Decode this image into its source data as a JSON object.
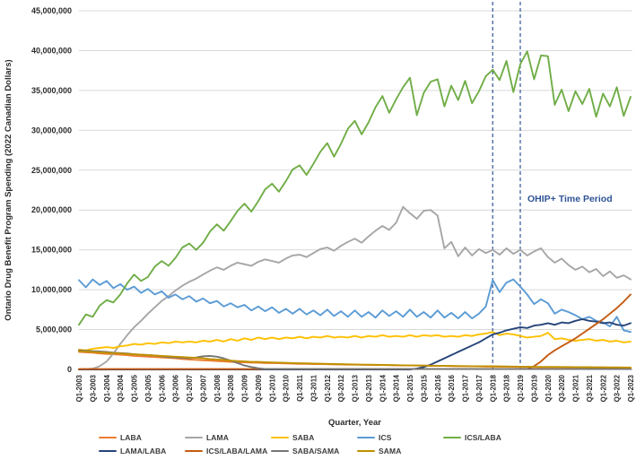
{
  "y_axis": {
    "title": "Ontario Drug Benefit Program Spending (2022 Canadian Dollars)",
    "tick_labels": [
      "0",
      "5,000,000",
      "10,000,000",
      "15,000,000",
      "20,000,000",
      "25,000,000",
      "30,000,000",
      "35,000,000",
      "40,000,000",
      "45,000,000"
    ],
    "min": 0,
    "max": 45000000,
    "step": 5000000
  },
  "x_axis": {
    "title": "Quarter, Year",
    "tick_labels": [
      "Q1-2003",
      "Q3-2003",
      "Q1-2004",
      "Q3-2004",
      "Q1-2005",
      "Q3-2005",
      "Q1-2006",
      "Q3-2006",
      "Q1-2007",
      "Q3-2007",
      "Q1-2008",
      "Q3-2008",
      "Q1-2009",
      "Q3-2009",
      "Q1-2010",
      "Q3-2010",
      "Q1-2011",
      "Q3-2011",
      "Q1-2012",
      "Q3-2012",
      "Q1-2013",
      "Q3-2013",
      "Q1-2014",
      "Q3-2014",
      "Q1-2015",
      "Q3-2015",
      "Q1-2016",
      "Q3-2016",
      "Q1-2017",
      "Q3-2017",
      "Q1-2018",
      "Q3-2018",
      "Q1-2019",
      "Q3-2019",
      "Q1-2020",
      "Q3-2020",
      "Q1-2021",
      "Q3-2021",
      "Q1-2022",
      "Q3-2022",
      "Q1-2023"
    ]
  },
  "annotation": {
    "label": "OHIP+ Time Period",
    "color": "#2F5496",
    "vline_quarter_indices": [
      60,
      64
    ],
    "period_start": "Q1-2018",
    "period_end": "Q2-2019"
  },
  "chart_data": {
    "type": "line",
    "x_start": "Q1-2003",
    "x_end": "Q1-2023",
    "points_per_series": 81,
    "x_unit": "quarter",
    "value_unit": "millions of 2022 Canadian dollars",
    "ylim_millions": [
      0,
      45
    ],
    "grid": "horizontal",
    "legend_position": "bottom",
    "series": [
      {
        "name": "LABA",
        "color": "#ED7D31",
        "values": [
          2.2,
          2.15,
          2.1,
          2.0,
          1.95,
          1.9,
          1.85,
          1.8,
          1.7,
          1.65,
          1.6,
          1.55,
          1.5,
          1.45,
          1.4,
          1.3,
          1.25,
          1.2,
          1.15,
          1.1,
          1.05,
          1.0,
          0.95,
          0.9,
          0.9,
          0.85,
          0.85,
          0.8,
          0.8,
          0.78,
          0.75,
          0.72,
          0.7,
          0.7,
          0.68,
          0.66,
          0.65,
          0.63,
          0.62,
          0.6,
          0.6,
          0.58,
          0.57,
          0.55,
          0.55,
          0.53,
          0.52,
          0.5,
          0.5,
          0.48,
          0.47,
          0.45,
          0.45,
          0.44,
          0.42,
          0.4,
          0.4,
          0.38,
          0.37,
          0.35,
          0.35,
          0.34,
          0.33,
          0.32,
          0.3,
          0.3,
          0.29,
          0.28,
          0.28,
          0.27,
          0.26,
          0.25,
          0.25,
          0.24,
          0.24,
          0.23,
          0.22,
          0.22,
          0.21,
          0.2,
          0.2
        ]
      },
      {
        "name": "LAMA",
        "color": "#A6A6A6",
        "values": [
          0.0,
          0.05,
          0.1,
          0.4,
          1.0,
          2.0,
          3.2,
          4.3,
          5.3,
          6.1,
          7.0,
          7.8,
          8.6,
          9.2,
          9.9,
          10.5,
          11.0,
          11.4,
          11.9,
          12.4,
          12.8,
          12.5,
          13.0,
          13.4,
          13.2,
          13.0,
          13.5,
          13.8,
          13.6,
          13.4,
          13.9,
          14.3,
          14.4,
          14.1,
          14.6,
          15.1,
          15.3,
          14.9,
          15.5,
          16.0,
          16.4,
          15.9,
          16.7,
          17.4,
          18.0,
          17.5,
          18.4,
          20.4,
          19.6,
          18.9,
          19.9,
          20.0,
          19.3,
          15.2,
          16.0,
          14.2,
          15.3,
          14.3,
          15.1,
          14.6,
          15.0,
          14.4,
          15.2,
          14.5,
          15.0,
          14.3,
          14.8,
          15.2,
          14.1,
          13.4,
          13.9,
          13.1,
          12.5,
          12.9,
          12.2,
          12.6,
          11.7,
          12.3,
          11.5,
          11.8,
          11.3
        ]
      },
      {
        "name": "SABA",
        "color": "#FFC000",
        "values": [
          2.5,
          2.4,
          2.6,
          2.7,
          2.8,
          2.7,
          2.9,
          3.0,
          3.2,
          3.1,
          3.3,
          3.2,
          3.4,
          3.3,
          3.5,
          3.4,
          3.5,
          3.4,
          3.6,
          3.5,
          3.7,
          3.5,
          3.8,
          3.6,
          3.9,
          3.7,
          4.0,
          3.8,
          4.0,
          3.8,
          4.0,
          3.9,
          4.1,
          3.9,
          4.1,
          4.0,
          4.2,
          4.0,
          4.1,
          4.0,
          4.2,
          4.0,
          4.2,
          4.1,
          4.3,
          4.1,
          4.2,
          4.1,
          4.3,
          4.1,
          4.3,
          4.2,
          4.3,
          4.1,
          4.2,
          4.1,
          4.3,
          4.2,
          4.4,
          4.5,
          4.7,
          4.3,
          4.5,
          4.4,
          4.2,
          4.0,
          4.1,
          4.2,
          4.6,
          3.8,
          3.9,
          3.7,
          3.6,
          3.7,
          3.8,
          3.6,
          3.7,
          3.5,
          3.6,
          3.4,
          3.5
        ]
      },
      {
        "name": "ICS",
        "color": "#5B9BD5",
        "values": [
          11.2,
          10.3,
          11.3,
          10.6,
          11.1,
          10.2,
          10.7,
          10.0,
          10.4,
          9.6,
          10.1,
          9.4,
          9.8,
          9.0,
          9.4,
          8.8,
          9.2,
          8.5,
          8.9,
          8.3,
          8.6,
          7.9,
          8.3,
          7.8,
          8.1,
          7.4,
          7.9,
          7.3,
          7.8,
          7.1,
          7.6,
          7.0,
          7.6,
          6.9,
          7.4,
          6.8,
          7.5,
          6.7,
          7.3,
          6.6,
          7.4,
          6.6,
          7.2,
          6.5,
          7.4,
          6.7,
          7.3,
          6.6,
          7.5,
          6.6,
          7.2,
          6.5,
          7.4,
          6.5,
          7.1,
          6.4,
          7.2,
          6.4,
          7.0,
          7.9,
          11.2,
          9.7,
          10.9,
          11.3,
          10.4,
          9.4,
          8.2,
          8.8,
          8.3,
          7.0,
          7.5,
          7.2,
          6.8,
          6.3,
          6.6,
          6.1,
          5.9,
          5.4,
          6.6,
          4.9,
          4.7
        ]
      },
      {
        "name": "ICS/LABA",
        "color": "#70AD47",
        "values": [
          5.6,
          6.9,
          6.6,
          8.0,
          8.7,
          8.4,
          9.4,
          10.8,
          11.9,
          11.1,
          11.6,
          12.9,
          13.6,
          13.0,
          14.0,
          15.3,
          15.8,
          15.0,
          15.9,
          17.3,
          18.2,
          17.4,
          18.6,
          19.9,
          20.8,
          19.8,
          21.1,
          22.6,
          23.3,
          22.3,
          23.6,
          25.1,
          25.6,
          24.4,
          25.8,
          27.3,
          28.4,
          26.7,
          28.3,
          30.2,
          31.2,
          29.5,
          31.0,
          32.9,
          34.3,
          32.2,
          33.9,
          35.4,
          36.6,
          31.9,
          34.7,
          36.1,
          36.4,
          33.0,
          35.6,
          33.8,
          36.2,
          33.4,
          34.9,
          36.8,
          37.6,
          36.3,
          38.7,
          34.8,
          38.3,
          39.9,
          36.4,
          39.4,
          39.3,
          33.2,
          35.1,
          32.4,
          34.9,
          33.3,
          35.2,
          31.7,
          34.6,
          33.0,
          35.4,
          31.8,
          34.2
        ]
      },
      {
        "name": "LAMA/LABA",
        "color": "#264478",
        "values": [
          0,
          0,
          0,
          0,
          0,
          0,
          0,
          0,
          0,
          0,
          0,
          0,
          0,
          0,
          0,
          0,
          0,
          0,
          0,
          0,
          0,
          0,
          0,
          0,
          0,
          0,
          0,
          0,
          0,
          0,
          0,
          0,
          0,
          0,
          0,
          0,
          0,
          0,
          0,
          0,
          0,
          0,
          0,
          0,
          0,
          0,
          0,
          0,
          0.0,
          0.1,
          0.3,
          0.6,
          1.0,
          1.4,
          1.8,
          2.2,
          2.6,
          3.0,
          3.4,
          3.9,
          4.4,
          4.6,
          4.9,
          5.1,
          5.3,
          5.2,
          5.5,
          5.6,
          5.8,
          5.6,
          5.9,
          5.8,
          6.1,
          6.3,
          6.1,
          6.0,
          5.8,
          5.9,
          5.6,
          5.5,
          5.8
        ]
      },
      {
        "name": "ICS/LABA/LAMA",
        "color": "#C55A11",
        "values": [
          0.05,
          0.05,
          0.05,
          0.05,
          0.05,
          0.05,
          0.05,
          0.05,
          0.05,
          0.05,
          0.05,
          0.05,
          0.05,
          0.05,
          0.05,
          0.05,
          0.05,
          0.05,
          0.05,
          0.05,
          0.05,
          0.05,
          0.05,
          0.05,
          0.05,
          0.05,
          0.05,
          0.05,
          0.05,
          0.05,
          0.05,
          0.05,
          0.05,
          0.05,
          0.05,
          0.05,
          0.05,
          0.05,
          0.05,
          0.05,
          0.05,
          0.05,
          0.05,
          0.05,
          0.05,
          0.05,
          0.05,
          0.05,
          0.05,
          0.05,
          0.05,
          0.05,
          0.05,
          0.05,
          0.05,
          0.05,
          0.05,
          0.05,
          0.05,
          0.05,
          0.05,
          0.05,
          0.05,
          0.05,
          0.05,
          0.05,
          0.4,
          1.0,
          1.8,
          2.4,
          2.9,
          3.4,
          3.9,
          4.5,
          5.1,
          5.7,
          6.3,
          7.0,
          7.7,
          8.5,
          9.4
        ]
      },
      {
        "name": "SABA/SAMA",
        "color": "#757575",
        "values": [
          2.4,
          2.35,
          2.3,
          2.25,
          2.2,
          2.1,
          2.05,
          2.0,
          1.9,
          1.85,
          1.8,
          1.75,
          1.65,
          1.55,
          1.5,
          1.45,
          1.4,
          1.5,
          1.65,
          1.7,
          1.6,
          1.4,
          1.1,
          0.8,
          0.5,
          0.3,
          0.15,
          0.05,
          0.05,
          0.05,
          0.05,
          0.05,
          0.05,
          0.05,
          0.05,
          0.05,
          0.05,
          0.05,
          0.05,
          0.05,
          0.05,
          0.05,
          0.05,
          0.05,
          0.05,
          0.05,
          0.05,
          0.05,
          0.05,
          0.05,
          0.05,
          0.05,
          0.05,
          0.05,
          0.05,
          0.05,
          0.05,
          0.05,
          0.05,
          0.05,
          0.05,
          0.05,
          0.05,
          0.05,
          0.05,
          0.05,
          0.05,
          0.05,
          0.05,
          0.05,
          0.05,
          0.05,
          0.05,
          0.05,
          0.05,
          0.05,
          0.05,
          0.05,
          0.05,
          0.05,
          0.05
        ]
      },
      {
        "name": "SAMA",
        "color": "#BF9000",
        "values": [
          2.3,
          2.25,
          2.2,
          2.15,
          2.1,
          2.05,
          2.0,
          1.95,
          1.9,
          1.85,
          1.8,
          1.75,
          1.7,
          1.65,
          1.6,
          1.55,
          1.5,
          1.45,
          1.4,
          1.3,
          1.25,
          1.2,
          1.1,
          1.05,
          1.0,
          0.95,
          0.95,
          0.9,
          0.88,
          0.85,
          0.83,
          0.8,
          0.78,
          0.76,
          0.74,
          0.72,
          0.7,
          0.68,
          0.66,
          0.64,
          0.62,
          0.6,
          0.6,
          0.58,
          0.56,
          0.55,
          0.54,
          0.52,
          0.5,
          0.5,
          0.48,
          0.47,
          0.46,
          0.45,
          0.44,
          0.43,
          0.42,
          0.41,
          0.4,
          0.4,
          0.39,
          0.38,
          0.37,
          0.36,
          0.35,
          0.34,
          0.33,
          0.32,
          0.32,
          0.31,
          0.3,
          0.3,
          0.29,
          0.28,
          0.28,
          0.27,
          0.27,
          0.26,
          0.26,
          0.25,
          0.25
        ]
      }
    ],
    "colors": {
      "grid": "#D9D9D9",
      "axis": "#A6A6A6",
      "tick_text": "#2b2b2b",
      "annotation": "#2F5496"
    }
  },
  "legend": {
    "row1": [
      "LABA",
      "LAMA",
      "SABA",
      "ICS",
      "ICS/LABA"
    ],
    "row2": [
      "LAMA/LABA",
      "ICS/LABA/LAMA",
      "SABA/SAMA",
      "SAMA"
    ]
  }
}
